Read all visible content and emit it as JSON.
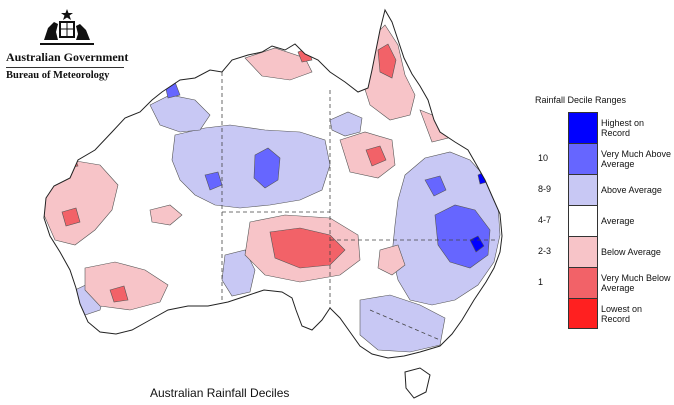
{
  "header": {
    "government": "Australian Government",
    "bureau": "Bureau of Meteorology"
  },
  "map": {
    "caption": "Australian Rainfall Deciles",
    "region": "Australia"
  },
  "legend": {
    "title": "Rainfall Decile Ranges",
    "classes": [
      {
        "label": "Highest on Record",
        "range": "",
        "color": "#0000ff"
      },
      {
        "label": "Very Much Above Average",
        "range": "10",
        "color": "#6666ff"
      },
      {
        "label": "Above Average",
        "range": "8-9",
        "color": "#c8c8f4"
      },
      {
        "label": "Average",
        "range": "4-7",
        "color": "#ffffff"
      },
      {
        "label": "Below Average",
        "range": "2-3",
        "color": "#f7c4c8"
      },
      {
        "label": "Very Much Below Average",
        "range": "1",
        "color": "#f26268"
      },
      {
        "label": "Lowest on Record",
        "range": "",
        "color": "#ff2020"
      }
    ]
  }
}
